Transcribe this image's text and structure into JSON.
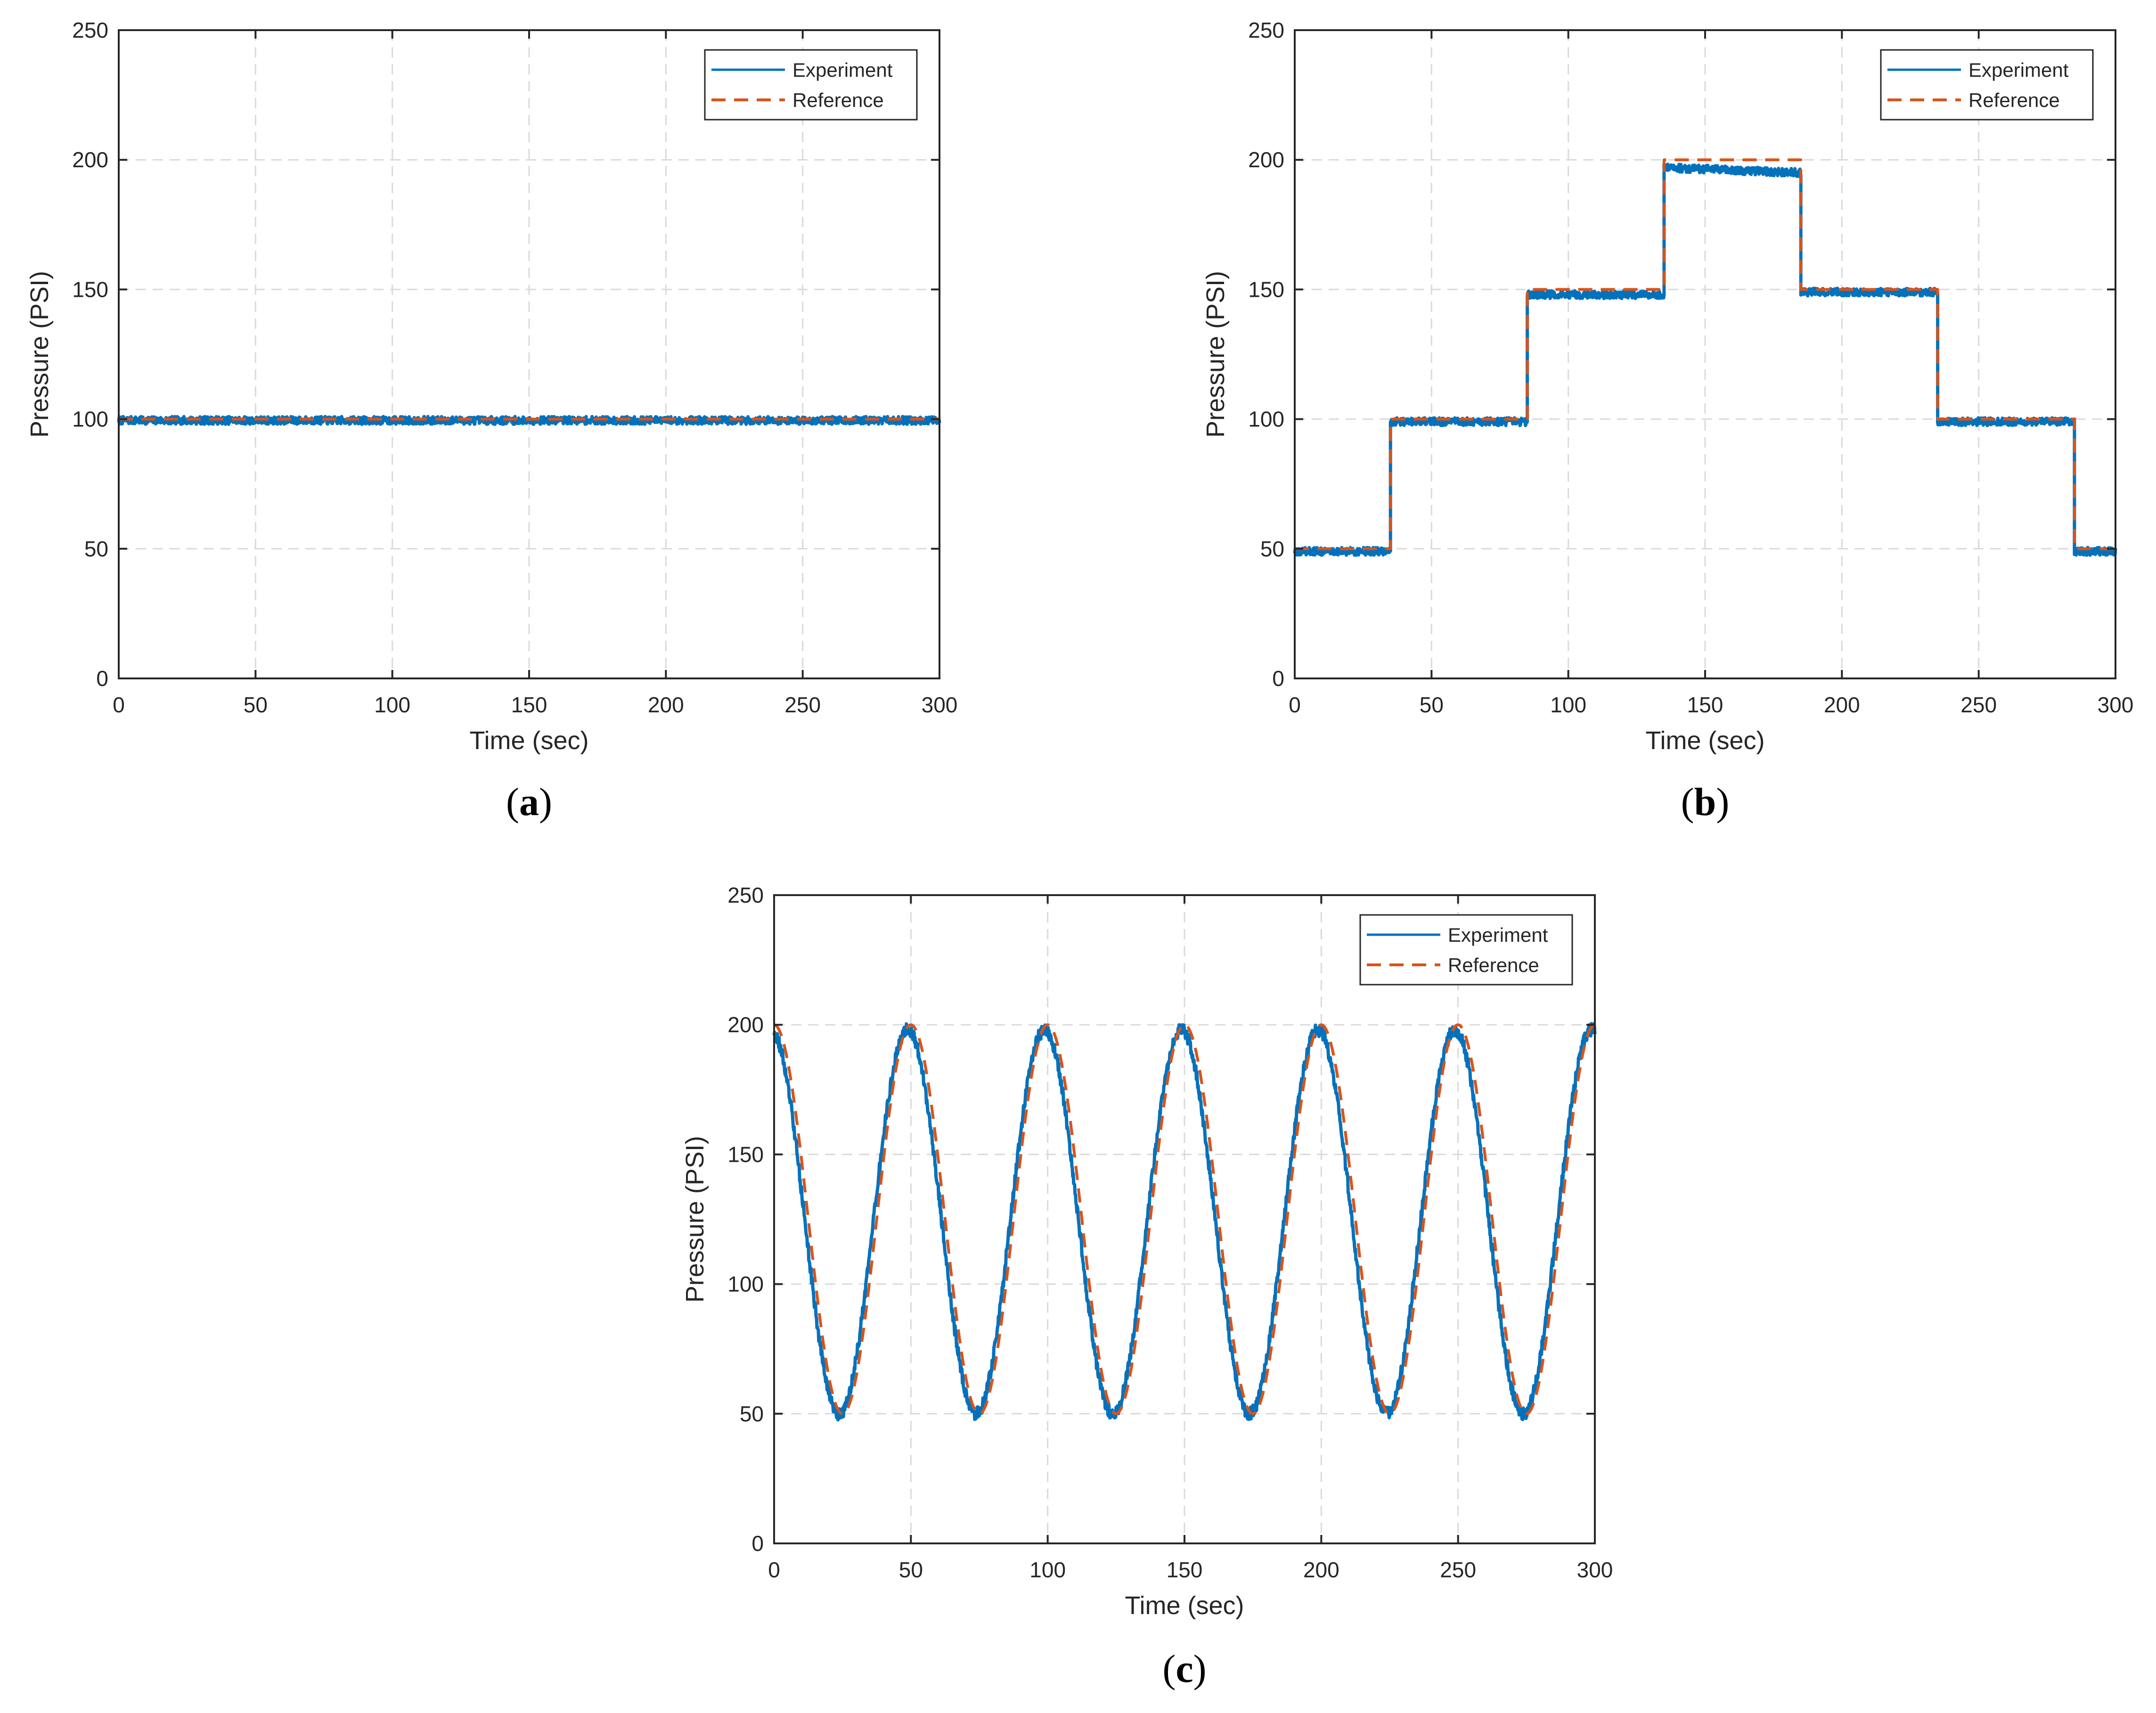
{
  "colors": {
    "experiment": "#0072BD",
    "reference": "#D95319",
    "grid": "#DADADA",
    "axis": "#262626"
  },
  "chart_data": [
    {
      "type": "line",
      "panel_label": "a",
      "xlabel": "Time (sec)",
      "ylabel": "Pressure (PSI)",
      "xlim": [
        0,
        300
      ],
      "ylim": [
        0,
        250
      ],
      "xticks": [
        "0",
        "50",
        "100",
        "150",
        "200",
        "250",
        "300"
      ],
      "yticks": [
        "0",
        "50",
        "100",
        "150",
        "200",
        "250"
      ],
      "grid": true,
      "legend_position": "top-right",
      "series": [
        {
          "name": "Experiment",
          "style": "solid",
          "x": [
            0,
            300
          ],
          "y": [
            99.5,
            99.5
          ],
          "noise": 1.5
        },
        {
          "name": "Reference",
          "style": "dashed",
          "x": [
            0,
            300
          ],
          "y": [
            100,
            100
          ]
        }
      ]
    },
    {
      "type": "line",
      "panel_label": "b",
      "xlabel": "Time (sec)",
      "ylabel": "Pressure (PSI)",
      "xlim": [
        0,
        300
      ],
      "ylim": [
        0,
        250
      ],
      "xticks": [
        "0",
        "50",
        "100",
        "150",
        "200",
        "250",
        "300"
      ],
      "yticks": [
        "0",
        "50",
        "100",
        "150",
        "200",
        "250"
      ],
      "grid": true,
      "legend_position": "top-right",
      "series": [
        {
          "name": "Experiment",
          "style": "solid",
          "x": [
            0,
            35,
            35,
            85,
            85,
            135,
            135,
            185,
            185,
            235,
            235,
            285,
            285,
            300
          ],
          "y": [
            49,
            49,
            99,
            99,
            148,
            148,
            197,
            195,
            149,
            149,
            99,
            99,
            49,
            49
          ],
          "noise": 1.5
        },
        {
          "name": "Reference",
          "style": "dashed",
          "x": [
            0,
            35,
            35,
            85,
            85,
            135,
            135,
            185,
            185,
            235,
            235,
            285,
            285,
            300
          ],
          "y": [
            50,
            50,
            100,
            100,
            150,
            150,
            200,
            200,
            150,
            150,
            100,
            100,
            50,
            50
          ]
        }
      ]
    },
    {
      "type": "line",
      "panel_label": "c",
      "xlabel": "Time (sec)",
      "ylabel": "Pressure (PSI)",
      "xlim": [
        0,
        300
      ],
      "ylim": [
        0,
        250
      ],
      "xticks": [
        "0",
        "50",
        "100",
        "150",
        "200",
        "250",
        "300"
      ],
      "yticks": [
        "0",
        "50",
        "100",
        "150",
        "200",
        "250"
      ],
      "grid": true,
      "legend_position": "top-right",
      "series": [
        {
          "name": "Experiment",
          "style": "solid",
          "function": "sinusoid",
          "offset": 124,
          "amplitude": 74,
          "period": 50,
          "phase_shift": -1.2,
          "noise": 2.5
        },
        {
          "name": "Reference",
          "style": "dashed",
          "function": "sinusoid",
          "offset": 125,
          "amplitude": 75,
          "period": 50,
          "phase_shift": 0
        }
      ]
    }
  ]
}
